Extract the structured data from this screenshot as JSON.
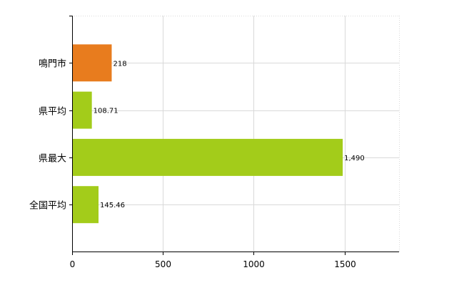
{
  "chart_data": {
    "type": "bar",
    "orientation": "horizontal",
    "categories": [
      "鳴門市",
      "県平均",
      "県最大",
      "全国平均"
    ],
    "values": [
      218,
      108.71,
      1490,
      145.46
    ],
    "value_labels": [
      "218",
      "108.71",
      "1,490",
      "145.46"
    ],
    "bar_colors": [
      "#e87c1e",
      "#a3cc1a",
      "#a3cc1a",
      "#a3cc1a"
    ],
    "xlim": [
      0,
      1800
    ],
    "xticks": [
      0,
      500,
      1000,
      1500
    ],
    "xtick_labels": [
      "0",
      "500",
      "1000",
      "1500"
    ],
    "grid": true,
    "title": "",
    "xlabel": "",
    "ylabel": ""
  }
}
